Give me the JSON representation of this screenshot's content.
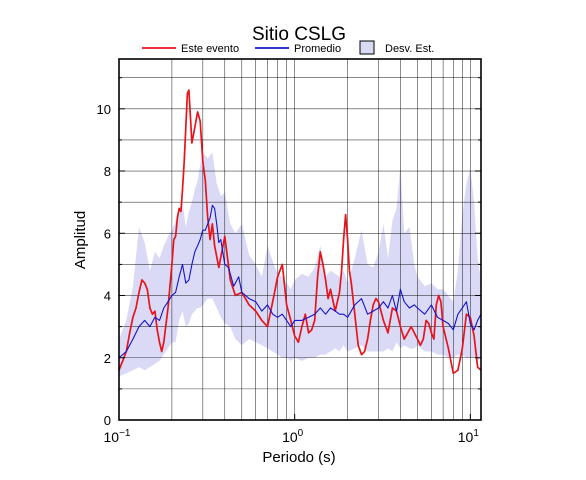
{
  "colors": {
    "event": "#e8141b",
    "mean": "#1414c8",
    "band_fill": "#dadaf7",
    "band_edge": "#000000",
    "grid": "#000000",
    "background": "#ffffff"
  },
  "chart_data": {
    "type": "line",
    "title": "Sitio CSLG",
    "xlabel": "Periodo (s)",
    "ylabel": "Amplitud",
    "x_scale": "log",
    "xlim": [
      0.1,
      11.5
    ],
    "ylim": [
      0,
      11.6
    ],
    "grid": true,
    "legend_position": "top-center",
    "x_ticks": [
      {
        "value": 0.1,
        "base": "10",
        "exp": "−1"
      },
      {
        "value": 1,
        "base": "10",
        "exp": "0"
      },
      {
        "value": 10,
        "base": "10",
        "exp": "1"
      }
    ],
    "y_ticks": [
      0,
      2,
      4,
      6,
      8,
      10
    ],
    "legend": [
      {
        "label": "Este evento",
        "kind": "line",
        "series": "event"
      },
      {
        "label": "Promedio",
        "kind": "line",
        "series": "mean"
      },
      {
        "label": "Desv. Est.",
        "kind": "box",
        "series": "band"
      }
    ],
    "series": [
      {
        "name": "Este evento",
        "id": "event",
        "x": [
          0.1,
          0.105,
          0.11,
          0.115,
          0.12,
          0.125,
          0.13,
          0.135,
          0.14,
          0.145,
          0.15,
          0.155,
          0.16,
          0.165,
          0.17,
          0.175,
          0.18,
          0.19,
          0.2,
          0.205,
          0.21,
          0.215,
          0.22,
          0.225,
          0.23,
          0.235,
          0.24,
          0.245,
          0.25,
          0.26,
          0.27,
          0.28,
          0.29,
          0.3,
          0.31,
          0.32,
          0.33,
          0.34,
          0.35,
          0.37,
          0.4,
          0.43,
          0.46,
          0.5,
          0.55,
          0.6,
          0.65,
          0.7,
          0.75,
          0.8,
          0.85,
          0.9,
          0.95,
          1.0,
          1.05,
          1.1,
          1.15,
          1.2,
          1.25,
          1.3,
          1.35,
          1.4,
          1.45,
          1.5,
          1.55,
          1.6,
          1.7,
          1.8,
          1.85,
          1.9,
          1.95,
          2.0,
          2.05,
          2.1,
          2.2,
          2.3,
          2.4,
          2.5,
          2.6,
          2.7,
          2.8,
          2.9,
          3.0,
          3.2,
          3.4,
          3.6,
          3.8,
          4.0,
          4.2,
          4.4,
          4.6,
          4.8,
          5.0,
          5.2,
          5.4,
          5.6,
          5.8,
          6.0,
          6.2,
          6.4,
          6.6,
          6.8,
          7.0,
          7.5,
          8.0,
          8.5,
          9.0,
          9.5,
          10.0,
          10.5,
          11.0,
          11.5
        ],
        "y": [
          1.6,
          1.9,
          2.2,
          2.8,
          3.3,
          3.6,
          4.1,
          4.5,
          4.4,
          4.2,
          3.6,
          3.4,
          3.5,
          2.9,
          2.5,
          2.2,
          2.5,
          3.6,
          5.0,
          5.8,
          5.9,
          6.5,
          6.8,
          6.7,
          7.4,
          8.3,
          9.4,
          10.5,
          10.6,
          8.9,
          9.4,
          9.9,
          9.6,
          8.3,
          7.7,
          6.5,
          5.8,
          6.3,
          5.6,
          4.9,
          5.9,
          4.5,
          4.0,
          4.1,
          3.7,
          3.5,
          3.2,
          3.0,
          3.8,
          4.6,
          5.0,
          3.7,
          3.2,
          2.7,
          2.5,
          3.0,
          3.4,
          2.8,
          2.9,
          3.2,
          4.6,
          5.4,
          5.0,
          4.5,
          3.9,
          4.2,
          3.5,
          4.1,
          4.8,
          5.8,
          6.6,
          5.8,
          4.8,
          4.4,
          3.4,
          2.4,
          2.1,
          2.2,
          2.6,
          3.2,
          3.7,
          3.9,
          3.8,
          3.2,
          2.8,
          3.6,
          3.5,
          3.0,
          2.6,
          2.8,
          3.0,
          2.8,
          2.6,
          2.4,
          2.6,
          3.2,
          3.1,
          2.8,
          2.6,
          3.7,
          4.0,
          3.8,
          3.0,
          2.3,
          1.5,
          1.6,
          2.3,
          3.4,
          3.3,
          2.7,
          1.7,
          1.6
        ]
      },
      {
        "name": "Promedio",
        "id": "mean",
        "x": [
          0.1,
          0.11,
          0.12,
          0.13,
          0.14,
          0.15,
          0.16,
          0.17,
          0.18,
          0.19,
          0.2,
          0.21,
          0.22,
          0.23,
          0.24,
          0.25,
          0.26,
          0.27,
          0.28,
          0.29,
          0.3,
          0.31,
          0.32,
          0.33,
          0.34,
          0.35,
          0.36,
          0.37,
          0.38,
          0.4,
          0.42,
          0.45,
          0.48,
          0.5,
          0.55,
          0.6,
          0.65,
          0.7,
          0.75,
          0.8,
          0.85,
          0.9,
          0.95,
          1.0,
          1.1,
          1.2,
          1.3,
          1.4,
          1.5,
          1.6,
          1.7,
          1.8,
          1.9,
          2.0,
          2.2,
          2.4,
          2.6,
          2.8,
          3.0,
          3.2,
          3.4,
          3.6,
          3.8,
          4.0,
          4.2,
          4.5,
          4.8,
          5.0,
          5.5,
          6.0,
          6.5,
          7.0,
          7.5,
          8.0,
          8.5,
          9.0,
          9.5,
          10.0,
          10.5,
          11.0,
          11.5
        ],
        "y": [
          2.0,
          2.2,
          2.6,
          3.0,
          3.2,
          3.0,
          3.3,
          3.2,
          3.6,
          3.8,
          4.0,
          4.1,
          4.6,
          5.0,
          4.4,
          4.5,
          5.0,
          5.4,
          5.6,
          5.8,
          6.1,
          6.1,
          6.3,
          6.5,
          6.9,
          6.8,
          6.3,
          5.7,
          5.8,
          5.0,
          4.9,
          4.3,
          4.6,
          4.1,
          3.9,
          3.8,
          3.5,
          3.7,
          3.4,
          3.3,
          3.4,
          3.2,
          3.0,
          3.2,
          3.2,
          3.3,
          3.4,
          3.6,
          3.4,
          3.6,
          3.5,
          3.4,
          3.4,
          3.3,
          3.7,
          3.9,
          3.4,
          3.5,
          3.6,
          3.8,
          3.6,
          4.0,
          3.5,
          4.2,
          3.8,
          3.6,
          3.7,
          3.6,
          3.4,
          3.7,
          3.3,
          3.2,
          3.1,
          2.9,
          3.4,
          3.6,
          3.8,
          3.1,
          2.9,
          3.2,
          3.4
        ]
      }
    ],
    "band": {
      "name": "Desv. Est.",
      "x": [
        0.1,
        0.11,
        0.12,
        0.13,
        0.14,
        0.15,
        0.16,
        0.17,
        0.18,
        0.19,
        0.2,
        0.21,
        0.22,
        0.23,
        0.24,
        0.25,
        0.26,
        0.27,
        0.28,
        0.29,
        0.3,
        0.32,
        0.34,
        0.36,
        0.38,
        0.4,
        0.43,
        0.46,
        0.5,
        0.55,
        0.6,
        0.65,
        0.7,
        0.75,
        0.8,
        0.85,
        0.9,
        0.95,
        1.0,
        1.1,
        1.2,
        1.3,
        1.4,
        1.5,
        1.6,
        1.7,
        1.8,
        1.9,
        2.0,
        2.2,
        2.4,
        2.6,
        2.8,
        3.0,
        3.2,
        3.4,
        3.6,
        3.8,
        4.0,
        4.2,
        4.5,
        4.8,
        5.0,
        5.5,
        6.0,
        6.5,
        7.0,
        7.5,
        8.0,
        8.5,
        9.0,
        9.5,
        10.0,
        10.5,
        11.0,
        11.5
      ],
      "upper": [
        2.6,
        3.2,
        4.3,
        6.2,
        5.7,
        4.8,
        5.4,
        5.2,
        5.6,
        5.9,
        6.1,
        6.4,
        6.7,
        7.0,
        6.2,
        6.7,
        7.0,
        7.4,
        7.7,
        8.2,
        8.6,
        8.4,
        8.6,
        7.6,
        7.2,
        7.3,
        6.3,
        6.0,
        6.3,
        5.3,
        5.0,
        4.6,
        5.6,
        5.1,
        4.7,
        4.6,
        4.4,
        4.2,
        4.5,
        4.7,
        4.6,
        4.9,
        5.6,
        4.6,
        4.8,
        4.7,
        4.6,
        4.8,
        4.4,
        5.2,
        6.1,
        5.0,
        4.9,
        5.4,
        6.3,
        5.2,
        6.4,
        6.8,
        8.2,
        6.0,
        6.2,
        5.0,
        4.6,
        4.3,
        4.4,
        4.2,
        4.2,
        4.0,
        3.8,
        4.8,
        6.6,
        7.6,
        8.1,
        7.0,
        5.2,
        4.5
      ],
      "lower": [
        1.4,
        1.5,
        1.6,
        1.7,
        1.6,
        1.7,
        1.8,
        1.9,
        2.1,
        2.3,
        2.5,
        2.5,
        3.2,
        3.5,
        3.0,
        3.1,
        3.4,
        3.5,
        3.6,
        3.6,
        3.7,
        3.9,
        3.9,
        3.6,
        3.3,
        3.1,
        3.0,
        2.6,
        2.4,
        2.6,
        2.5,
        2.4,
        2.3,
        2.2,
        2.1,
        2.0,
        2.0,
        1.9,
        2.0,
        1.9,
        2.0,
        2.0,
        2.1,
        2.1,
        2.2,
        2.3,
        2.2,
        2.4,
        2.2,
        2.3,
        2.4,
        2.2,
        2.2,
        2.2,
        2.2,
        2.3,
        2.2,
        2.5,
        2.3,
        2.4,
        2.3,
        2.3,
        2.4,
        2.2,
        2.2,
        2.1,
        2.1,
        2.0,
        2.0,
        2.1,
        2.1,
        2.0,
        2.0,
        2.0,
        1.9,
        2.0
      ]
    }
  }
}
